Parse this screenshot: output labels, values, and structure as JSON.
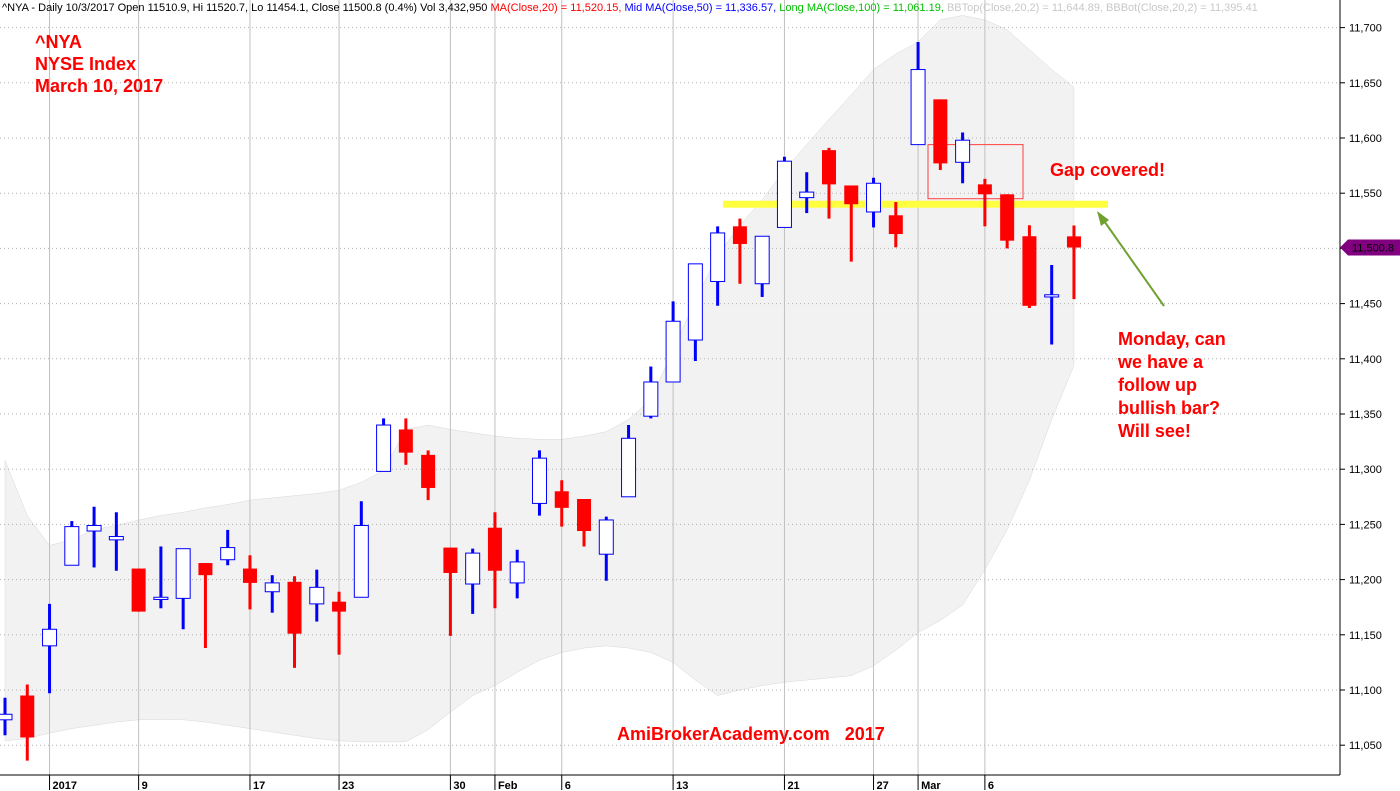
{
  "chart_data": {
    "type": "candlestick",
    "header": [
      {
        "text": "^NYA - Daily 10/3/2017 Open 11510.9, Hi 11520.7, Lo 11454.1, Close 11500.8 (0.4%) Vol 3,432,950 ",
        "color": "#000000"
      },
      {
        "text": "MA(Close,20) = 11,520.15, ",
        "color": "#ff0000"
      },
      {
        "text": "Mid MA(Close,50) = 11,336.57, ",
        "color": "#0000ff"
      },
      {
        "text": "Long MA(Close,100) = 11,061.19, ",
        "color": "#00c000"
      },
      {
        "text": "BBTop(Close,20,2) = 11,644.89, ",
        "color": "#c8c8c8"
      },
      {
        "text": "BBBot(Close,20,2) = 11,395.41",
        "color": "#c8c8c8"
      }
    ],
    "title_lines": [
      "^NYA",
      "NYSE Index",
      "March 10, 2017"
    ],
    "gap_note": "Gap covered!",
    "comment_lines": [
      "Monday, can",
      "we have a",
      "follow up",
      "bullish bar?",
      "Will see!"
    ],
    "watermark": "AmiBrokerAcademy.com   2017",
    "categories": [
      null,
      null,
      "2017",
      null,
      null,
      null,
      "9",
      null,
      null,
      null,
      null,
      "17",
      null,
      null,
      null,
      "23",
      null,
      null,
      null,
      null,
      "30",
      null,
      "Feb",
      null,
      null,
      "6",
      null,
      null,
      null,
      null,
      "13",
      null,
      null,
      null,
      null,
      "21",
      null,
      null,
      null,
      "27",
      null,
      "Mar",
      null,
      null,
      "6",
      null,
      null,
      null,
      null
    ],
    "open": [
      11073,
      11095,
      11140,
      11213,
      11244,
      11236,
      11210,
      11182,
      11183,
      11215,
      11218,
      11210,
      11189,
      11198,
      11178,
      11180,
      11184,
      11298,
      11336,
      11313,
      11229,
      11196,
      11247,
      11197,
      11269,
      11280,
      11273,
      11223,
      11275,
      11348,
      11379,
      11417,
      11470,
      11520,
      11468,
      11519,
      11546,
      11589,
      11557,
      11533,
      11530,
      11594,
      11635,
      11578,
      11558,
      11549,
      11511,
      11456,
      11510.9
    ],
    "high": [
      11093,
      11105,
      11178,
      11253,
      11266,
      11261,
      11210,
      11230,
      11228,
      11215,
      11245,
      11222,
      11204,
      11203,
      11209,
      11189,
      11271,
      11346,
      11346,
      11317,
      11229,
      11228,
      11261,
      11227,
      11317,
      11290,
      11273,
      11257,
      11340,
      11393,
      11452,
      11486,
      11520,
      11527,
      11511,
      11583,
      11569,
      11591,
      11557,
      11564,
      11542,
      11687,
      11635,
      11605,
      11563,
      11549,
      11521,
      11485,
      11520.7
    ],
    "low": [
      11059,
      11036,
      11097,
      11213,
      11211,
      11208,
      11171,
      11174,
      11155,
      11138,
      11213,
      11173,
      11170,
      11120,
      11162,
      11132,
      11184,
      11298,
      11304,
      11272,
      11149,
      11169,
      11174,
      11183,
      11258,
      11248,
      11230,
      11199,
      11275,
      11346,
      11379,
      11398,
      11448,
      11468,
      11456,
      11519,
      11532,
      11527,
      11488,
      11519,
      11501,
      11594,
      11571,
      11559,
      11520,
      11500,
      11446,
      11413,
      11454.1
    ],
    "close": [
      11078,
      11057,
      11155,
      11248,
      11249,
      11239,
      11171,
      11184,
      11228,
      11204,
      11229,
      11197,
      11197,
      11151,
      11193,
      11171,
      11249,
      11340,
      11315,
      11283,
      11206,
      11224,
      11208,
      11216,
      11310,
      11265,
      11244,
      11254,
      11328,
      11379,
      11434,
      11486,
      11514,
      11504,
      11511,
      11579,
      11551,
      11558,
      11540,
      11559,
      11513,
      11662,
      11577,
      11598,
      11549,
      11507,
      11448,
      11458,
      11500.8
    ],
    "up_color": "#0000ff",
    "down_color": "#ff0000",
    "band": {
      "upper": [
        11308,
        11258,
        11231,
        11236,
        11245,
        11249,
        11254,
        11258,
        11261,
        11265,
        11268,
        11272,
        11274,
        11276,
        11278,
        11281,
        11288,
        11299,
        11336,
        11340,
        11336,
        11333,
        11330,
        11328,
        11327,
        11327,
        11330,
        11334,
        11345,
        11363,
        11408,
        11453,
        11494,
        11521,
        11544,
        11571,
        11594,
        11617,
        11639,
        11662,
        11676,
        11687,
        11707,
        11711,
        11707,
        11698,
        11680,
        11662,
        11646
      ],
      "lower": [
        11054,
        11056,
        11061,
        11065,
        11068,
        11071,
        11073,
        11073,
        11073,
        11071,
        11068,
        11065,
        11062,
        11059,
        11056,
        11054,
        11053,
        11053,
        11053,
        11064,
        11080,
        11095,
        11104,
        11116,
        11127,
        11134,
        11138,
        11140,
        11138,
        11134,
        11125,
        11109,
        11095,
        11100,
        11104,
        11107,
        11109,
        11111,
        11113,
        11122,
        11136,
        11152,
        11163,
        11177,
        11209,
        11245,
        11290,
        11345,
        11394
      ],
      "color": "#f2f2f2"
    },
    "support_line": {
      "value": 11540,
      "color": "#ffff40"
    },
    "gap_box": {
      "top": 11594,
      "bottom": 11545,
      "color": "#ff4040"
    },
    "last_price": {
      "value": 11500.8,
      "label": "11,500.8",
      "color": "#800080"
    },
    "ylim": [
      11023,
      11725
    ],
    "yticks": [
      {
        "value": 11050,
        "label": "11,050"
      },
      {
        "value": 11100,
        "label": "11,100"
      },
      {
        "value": 11150,
        "label": "11,150"
      },
      {
        "value": 11200,
        "label": "11,200"
      },
      {
        "value": 11250,
        "label": "11,250"
      },
      {
        "value": 11300,
        "label": "11,300"
      },
      {
        "value": 11350,
        "label": "11,350"
      },
      {
        "value": 11400,
        "label": "11,400"
      },
      {
        "value": 11450,
        "label": "11,450"
      },
      {
        "value": 11500,
        "label": "11,500"
      },
      {
        "value": 11550,
        "label": "11,550"
      },
      {
        "value": 11600,
        "label": "11,600"
      },
      {
        "value": 11650,
        "label": "11,650"
      },
      {
        "value": 11700,
        "label": "11,700"
      }
    ],
    "grid": true
  }
}
